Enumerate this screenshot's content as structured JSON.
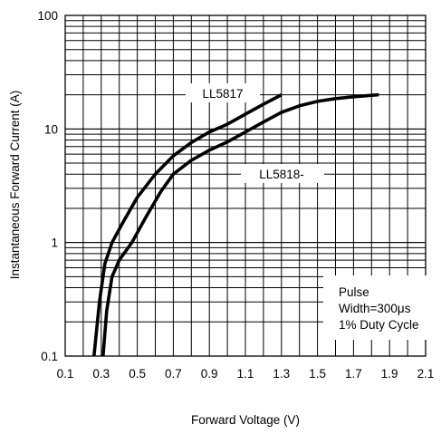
{
  "chart_data": {
    "type": "line",
    "title": "",
    "xlabel": "Forward Voltage (V)",
    "ylabel": "Instantaneous Forward Current (A)",
    "xlim": [
      0.1,
      2.1
    ],
    "ylim": [
      0.1,
      100
    ],
    "yscale": "log",
    "grid": true,
    "x_ticks": [
      "0.1",
      "0.3",
      "0.5",
      "0.7",
      "0.9",
      "1.1",
      "1.3",
      "1.5",
      "1.7",
      "1.9",
      "2.1"
    ],
    "y_ticks": [
      "0.1",
      "1",
      "10",
      "100"
    ],
    "series": [
      {
        "name": "LL5817",
        "x": [
          0.26,
          0.29,
          0.32,
          0.36,
          0.42,
          0.5,
          0.6,
          0.7,
          0.8,
          0.9,
          1.0,
          1.1,
          1.2,
          1.3
        ],
        "y": [
          0.1,
          0.3,
          0.65,
          1.0,
          1.5,
          2.5,
          4.0,
          5.8,
          7.6,
          9.4,
          11.0,
          13.5,
          16.5,
          20.0
        ]
      },
      {
        "name": "LL5818-",
        "x": [
          0.31,
          0.33,
          0.36,
          0.4,
          0.47,
          0.55,
          0.63,
          0.7,
          0.8,
          0.9,
          1.0,
          1.1,
          1.2,
          1.3,
          1.4,
          1.5,
          1.6,
          1.7,
          1.84
        ],
        "y": [
          0.1,
          0.25,
          0.5,
          0.7,
          1.0,
          1.7,
          2.8,
          4.0,
          5.3,
          6.5,
          7.7,
          9.4,
          11.5,
          14.0,
          16.0,
          17.5,
          18.5,
          19.2,
          20.0
        ]
      }
    ],
    "annotations": [
      "Pulse",
      "Width=300μs",
      "1% Duty Cycle"
    ]
  }
}
